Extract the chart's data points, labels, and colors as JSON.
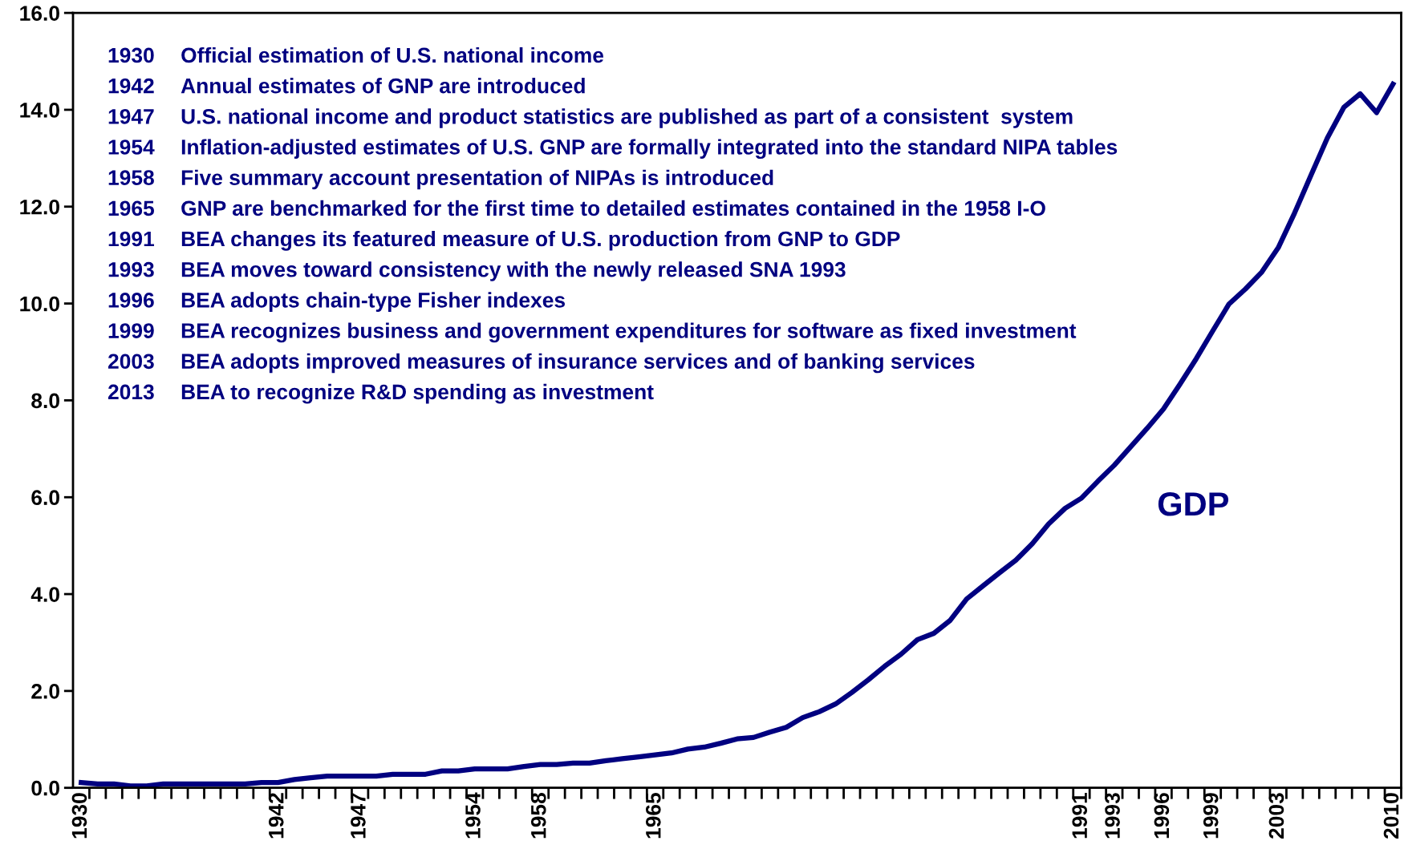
{
  "chart_data": {
    "type": "line",
    "categories": [
      "1930",
      null,
      null,
      null,
      null,
      null,
      null,
      null,
      null,
      null,
      null,
      null,
      "1942",
      null,
      null,
      null,
      null,
      "1947",
      null,
      null,
      null,
      null,
      null,
      null,
      "1954",
      null,
      null,
      null,
      "1958",
      null,
      null,
      null,
      null,
      null,
      null,
      "1965",
      null,
      null,
      null,
      null,
      null,
      null,
      null,
      null,
      null,
      null,
      null,
      null,
      null,
      null,
      null,
      null,
      null,
      null,
      null,
      null,
      null,
      null,
      null,
      null,
      null,
      "1991",
      null,
      "1993",
      null,
      null,
      "1996",
      null,
      null,
      "1999",
      null,
      null,
      null,
      "2003",
      null,
      null,
      null,
      null,
      null,
      null,
      "2010"
    ],
    "series": [
      {
        "name": "GDP",
        "color": "#000080",
        "values": [
          0.11,
          0.08,
          0.08,
          0.04,
          0.04,
          0.08,
          0.08,
          0.08,
          0.08,
          0.08,
          0.08,
          0.11,
          0.11,
          0.17,
          0.21,
          0.24,
          0.24,
          0.24,
          0.24,
          0.28,
          0.28,
          0.28,
          0.35,
          0.35,
          0.39,
          0.39,
          0.39,
          0.44,
          0.48,
          0.48,
          0.51,
          0.51,
          0.56,
          0.6,
          0.64,
          0.68,
          0.72,
          0.8,
          0.84,
          0.92,
          1.01,
          1.04,
          1.15,
          1.25,
          1.45,
          1.57,
          1.73,
          1.97,
          2.23,
          2.51,
          2.76,
          3.06,
          3.19,
          3.46,
          3.9,
          4.17,
          4.44,
          4.7,
          5.04,
          5.45,
          5.77,
          5.98,
          6.33,
          6.66,
          7.04,
          7.42,
          7.82,
          8.33,
          8.86,
          9.43,
          9.99,
          10.3,
          10.65,
          11.15,
          11.87,
          12.65,
          13.42,
          14.05,
          14.33,
          13.94,
          14.53
        ]
      }
    ],
    "ylim": [
      0,
      16
    ],
    "yticks": [
      {
        "value": 0,
        "label": "0.0"
      },
      {
        "value": 2,
        "label": "2.0"
      },
      {
        "value": 4,
        "label": "4.0"
      },
      {
        "value": 6,
        "label": "6.0"
      },
      {
        "value": 8,
        "label": "8.0"
      },
      {
        "value": 10,
        "label": "10.0"
      },
      {
        "value": 12,
        "label": "12.0"
      },
      {
        "value": 14,
        "label": "14.0"
      },
      {
        "value": 16,
        "label": "16.0"
      }
    ],
    "grid": false,
    "legend": false,
    "marker": "none",
    "line_style": "solid",
    "annotations": [
      "1930 Official estimation of U.S. national income",
      "1942 Annual estimates of GNP are introduced",
      "1947 U.S. national income and product statistics are published as part of a consistent  system",
      "1954 Inflation-adjusted estimates of U.S. GNP are formally integrated into the standard NIPA tables",
      "1958 Five summary account presentation of NIPAs is introduced",
      "1965 GNP are benchmarked for the first time to detailed estimates contained in the 1958 I-O",
      "1991 BEA changes its featured measure of U.S. production from GNP to GDP",
      "1993 BEA moves toward consistency with the newly released SNA 1993",
      "1996 BEA adopts chain-type Fisher indexes",
      "1999 BEA recognizes business and government expenditures for software as fixed investment",
      "2003 BEA adopts improved measures of insurance services and of banking services",
      "2013 BEA to recognize R&D spending as investment"
    ]
  }
}
